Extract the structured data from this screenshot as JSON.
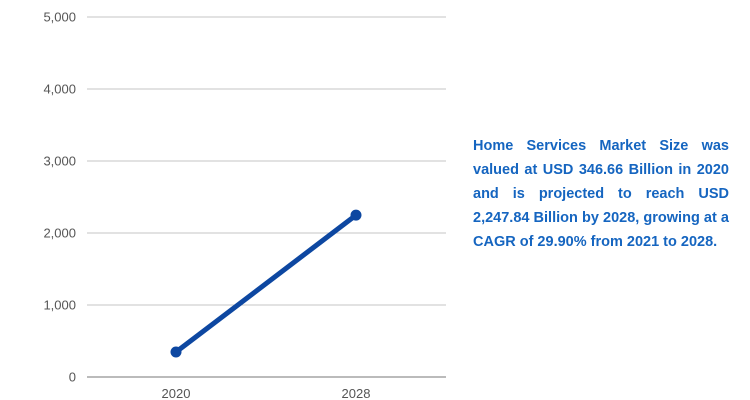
{
  "chart_data": {
    "type": "line",
    "title": "",
    "xlabel": "",
    "ylabel": "",
    "categories": [
      "2020",
      "2028"
    ],
    "series": [
      {
        "values": [
          346.66,
          2247.84
        ],
        "color": "#0d47a1"
      }
    ],
    "y_ticks": [
      "0",
      "1,000",
      "2,000",
      "3,000",
      "4,000",
      "5,000"
    ],
    "ylim": [
      0,
      5000
    ],
    "grid": true,
    "line_color": "#0d47a1"
  },
  "note": {
    "text": "Home Services Market Size was valued at USD 346.66 Billion in 2020 and is projected to reach USD 2,247.84 Billion by 2028, growing at a CAGR of 29.90% from 2021 to 2028.",
    "color": "#1565c0"
  }
}
